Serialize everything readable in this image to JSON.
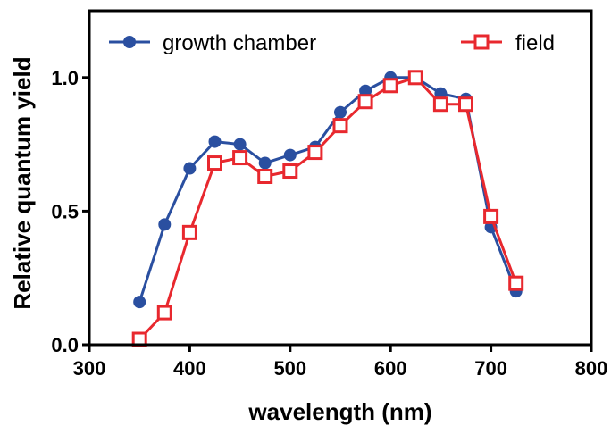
{
  "chart_data": {
    "type": "line",
    "xlabel": "wavelength (nm)",
    "ylabel": "Relative quantum yield",
    "xlim": [
      300,
      800
    ],
    "ylim": [
      0,
      1.25
    ],
    "xticks": [
      "300",
      "400",
      "500",
      "600",
      "700",
      "800"
    ],
    "yticks": [
      "0.0",
      "0.5",
      "1.0"
    ],
    "legend_position": "top",
    "grid": false,
    "series": [
      {
        "name": "growth chamber",
        "color": "#2a4fa0",
        "marker": "filled-circle",
        "x": [
          350,
          375,
          400,
          425,
          450,
          475,
          500,
          525,
          550,
          575,
          600,
          625,
          650,
          675,
          700,
          725
        ],
        "y": [
          0.16,
          0.45,
          0.66,
          0.76,
          0.75,
          0.68,
          0.71,
          0.74,
          0.87,
          0.95,
          1.0,
          1.0,
          0.94,
          0.92,
          0.44,
          0.2
        ]
      },
      {
        "name": "field",
        "color": "#e8282e",
        "marker": "open-square",
        "x": [
          350,
          375,
          400,
          425,
          450,
          475,
          500,
          525,
          550,
          575,
          600,
          625,
          650,
          675,
          700,
          725
        ],
        "y": [
          0.02,
          0.12,
          0.42,
          0.68,
          0.7,
          0.63,
          0.65,
          0.72,
          0.82,
          0.91,
          0.97,
          1.0,
          0.9,
          0.9,
          0.48,
          0.23
        ]
      }
    ]
  }
}
